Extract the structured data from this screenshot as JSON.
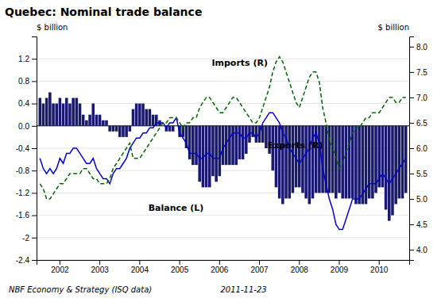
{
  "chart_data": {
    "type": "bar",
    "title": "Quebec: Nominal trade balance",
    "ylabel": "$ billion",
    "y2label": "$ billion",
    "annotations": [
      "NBF Economy & Strategy (ISQ data)",
      "2011-11-23"
    ],
    "categories": [
      null,
      null,
      null,
      null,
      null,
      null,
      "2002",
      null,
      null,
      null,
      null,
      null,
      null,
      null,
      null,
      null,
      null,
      null,
      "2003",
      null,
      null,
      null,
      null,
      null,
      null,
      null,
      null,
      null,
      null,
      null,
      "2004",
      null,
      null,
      null,
      null,
      null,
      null,
      null,
      null,
      null,
      null,
      null,
      "2005",
      null,
      null,
      null,
      null,
      null,
      null,
      null,
      null,
      null,
      null,
      null,
      "2006",
      null,
      null,
      null,
      null,
      null,
      null,
      null,
      null,
      null,
      null,
      null,
      "2007",
      null,
      null,
      null,
      null,
      null,
      null,
      null,
      null,
      null,
      null,
      null,
      "2008",
      null,
      null,
      null,
      null,
      null,
      null,
      null,
      null,
      null,
      null,
      null,
      "2009",
      null,
      null,
      null,
      null,
      null,
      null,
      null,
      null,
      null,
      null,
      null,
      "2010",
      null,
      null,
      null,
      null,
      null,
      null,
      null,
      null
    ],
    "ylim": [
      -2.4,
      1.6
    ],
    "yticks": [
      -2.4,
      -2.0,
      -1.6,
      -1.2,
      -0.8,
      -0.4,
      {
        "value": 0,
        "label": "0.0"
      },
      0.4,
      0.8,
      1.2
    ],
    "y2lim": [
      3.8,
      8.2
    ],
    "y2ticks": [
      {
        "value": 4,
        "label": "4.0"
      },
      4.5,
      {
        "value": 5,
        "label": "5.0"
      },
      5.5,
      {
        "value": 6,
        "label": "6.0"
      },
      6.5,
      {
        "value": 7,
        "label": "7.0"
      },
      7.5,
      {
        "value": 8,
        "label": "8.0"
      }
    ],
    "grid": true,
    "series": [
      {
        "name": "Balance (L)",
        "type": "bar",
        "color": "#191970",
        "values": [
          0.5,
          0.4,
          0.5,
          0.6,
          0.4,
          0.4,
          0.5,
          0.4,
          0.5,
          0.4,
          0.5,
          0.5,
          0.4,
          0.2,
          0.1,
          0.2,
          0.4,
          0.2,
          0.2,
          0.1,
          0.1,
          -0.1,
          -0.1,
          -0.1,
          -0.2,
          -0.2,
          -0.2,
          -0.1,
          0.3,
          0.4,
          0.4,
          0.4,
          0.3,
          0.3,
          0.2,
          0.2,
          0.1,
          0.0,
          -0.1,
          -0.1,
          -0.1,
          0.0,
          -0.2,
          -0.2,
          -0.4,
          -0.6,
          -0.7,
          -0.7,
          -1.0,
          -1.1,
          -1.1,
          -1.1,
          -0.9,
          -1.0,
          -0.9,
          -0.7,
          -0.7,
          -0.7,
          -0.7,
          -0.7,
          -0.6,
          -0.6,
          -0.5,
          -0.3,
          -0.2,
          -0.3,
          -0.3,
          -0.3,
          -0.4,
          -0.5,
          -0.8,
          -1.1,
          -1.3,
          -1.4,
          -1.3,
          -1.3,
          -1.2,
          -1.1,
          -1.1,
          -1.2,
          -1.3,
          -1.4,
          -1.3,
          -1.2,
          -1.2,
          -1.2,
          -1.2,
          -1.2,
          -1.2,
          -1.3,
          -1.2,
          -1.3,
          -1.3,
          -1.3,
          -1.3,
          -1.4,
          -1.4,
          -1.4,
          -1.4,
          -1.3,
          -1.3,
          -1.2,
          -1.1,
          -1.1,
          -1.5,
          -1.7,
          -1.6,
          -1.4,
          -1.3,
          -1.3,
          -1.2
        ]
      },
      {
        "name": "Exports (R)",
        "type": "line",
        "axis": "y2",
        "color": "#0000CC",
        "line_style": "solid",
        "values": [
          5.8,
          5.6,
          5.5,
          5.6,
          5.5,
          5.6,
          5.8,
          5.7,
          5.9,
          5.9,
          6.0,
          6.0,
          5.9,
          5.8,
          5.7,
          5.7,
          5.8,
          5.6,
          5.5,
          5.4,
          5.4,
          5.3,
          5.5,
          5.6,
          5.6,
          5.7,
          5.8,
          6.0,
          6.1,
          6.2,
          6.2,
          6.3,
          6.3,
          6.4,
          6.4,
          6.5,
          6.5,
          6.5,
          6.4,
          6.5,
          6.5,
          6.6,
          6.3,
          6.2,
          6.1,
          5.9,
          5.9,
          5.9,
          5.8,
          5.8,
          5.9,
          5.9,
          5.8,
          5.8,
          5.8,
          6.0,
          6.1,
          6.2,
          6.3,
          6.3,
          6.3,
          6.2,
          6.2,
          6.3,
          6.3,
          6.2,
          6.3,
          6.5,
          6.6,
          6.7,
          6.7,
          6.6,
          6.5,
          6.3,
          6.2,
          6.0,
          5.9,
          5.8,
          5.7,
          5.8,
          5.9,
          6.0,
          6.2,
          6.3,
          6.1,
          5.6,
          5.3,
          5.0,
          4.8,
          4.5,
          4.4,
          4.4,
          4.6,
          4.8,
          5.0,
          5.0,
          5.0,
          5.1,
          5.2,
          5.3,
          5.3,
          5.3,
          5.4,
          5.5,
          5.4,
          5.3,
          5.4,
          5.5,
          5.6,
          5.7,
          5.8
        ]
      },
      {
        "name": "Imports (R)",
        "type": "line",
        "axis": "y2",
        "color": "#006400",
        "line_style": "dashed",
        "values": [
          5.3,
          5.2,
          5.0,
          5.0,
          5.1,
          5.2,
          5.3,
          5.3,
          5.4,
          5.5,
          5.5,
          5.5,
          5.5,
          5.6,
          5.6,
          5.5,
          5.4,
          5.4,
          5.3,
          5.3,
          5.3,
          5.4,
          5.6,
          5.7,
          5.8,
          5.9,
          6.0,
          6.1,
          5.8,
          5.8,
          5.8,
          5.9,
          6.0,
          6.1,
          6.2,
          6.3,
          6.4,
          6.5,
          6.5,
          6.6,
          6.6,
          6.6,
          6.5,
          6.4,
          6.5,
          6.5,
          6.6,
          6.6,
          6.8,
          6.9,
          7.0,
          7.0,
          6.9,
          6.8,
          6.7,
          6.7,
          6.8,
          6.9,
          7.0,
          7.0,
          6.9,
          6.8,
          6.7,
          6.6,
          6.5,
          6.5,
          6.6,
          6.8,
          7.0,
          7.2,
          7.5,
          7.7,
          7.8,
          7.7,
          7.5,
          7.3,
          7.1,
          6.9,
          6.8,
          7.0,
          7.2,
          7.4,
          7.5,
          7.5,
          7.3,
          6.8,
          6.5,
          6.2,
          6.0,
          5.8,
          5.6,
          5.7,
          5.9,
          6.1,
          6.3,
          6.4,
          6.4,
          6.5,
          6.6,
          6.6,
          6.7,
          6.7,
          6.7,
          6.8,
          6.9,
          7.0,
          7.0,
          6.9,
          6.9,
          7.0,
          7.0
        ]
      }
    ]
  }
}
